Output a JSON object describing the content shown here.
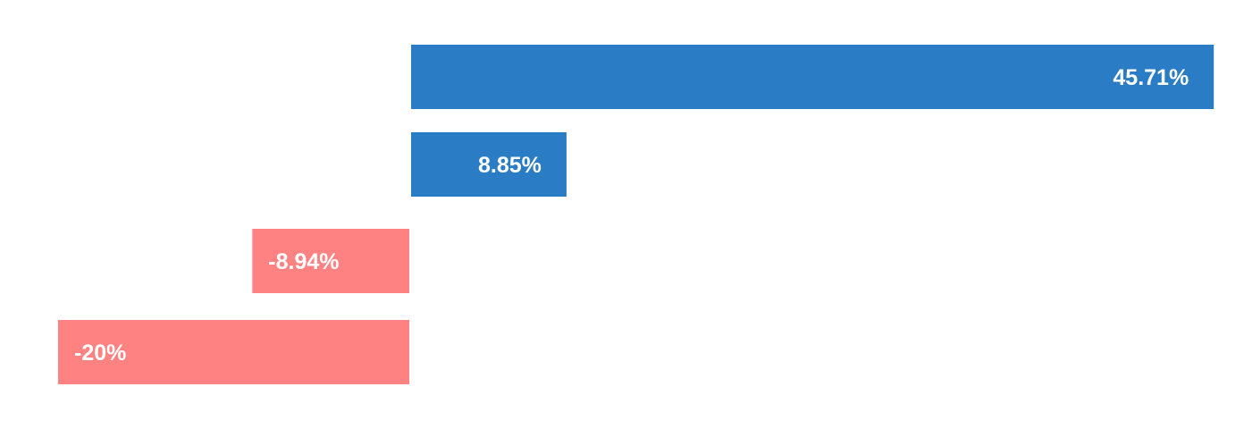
{
  "chart_data": {
    "type": "bar",
    "orientation": "horizontal",
    "categories": [
      "",
      "",
      "",
      ""
    ],
    "values": [
      45.71,
      8.85,
      -8.94,
      -20
    ],
    "value_labels": [
      "45.71%",
      "8.85%",
      "-8.94%",
      "-20%"
    ],
    "title": "",
    "xlabel": "",
    "ylabel": "",
    "grid": false,
    "legend": "none",
    "colors": {
      "positive": "#2a7dc4",
      "negative": "#ff8282"
    }
  }
}
